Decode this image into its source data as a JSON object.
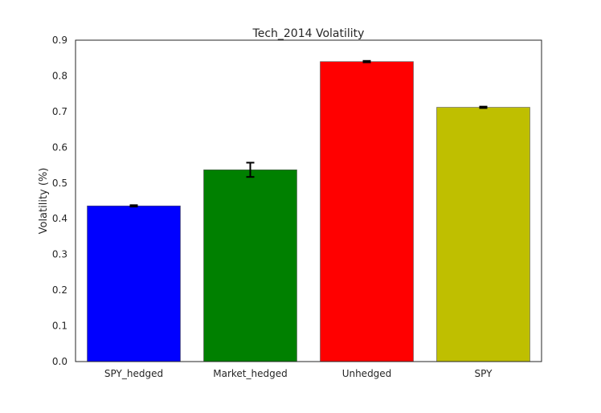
{
  "chart_data": {
    "type": "bar",
    "title": "Tech_2014 Volatility",
    "xlabel": "",
    "ylabel": "Volatility (%)",
    "categories": [
      "SPY_hedged",
      "Market_hedged",
      "Unhedged",
      "SPY"
    ],
    "values": [
      0.436,
      0.537,
      0.84,
      0.712
    ],
    "errors": [
      0.002,
      0.02,
      0.002,
      0.002
    ],
    "colors": [
      "#0000ff",
      "#008000",
      "#ff0000",
      "#bfbf00"
    ],
    "ylim": [
      0,
      0.9
    ],
    "yticks": [
      "0.0",
      "0.1",
      "0.2",
      "0.3",
      "0.4",
      "0.5",
      "0.6",
      "0.7",
      "0.8",
      "0.9"
    ],
    "grid": false,
    "legend": "none"
  }
}
